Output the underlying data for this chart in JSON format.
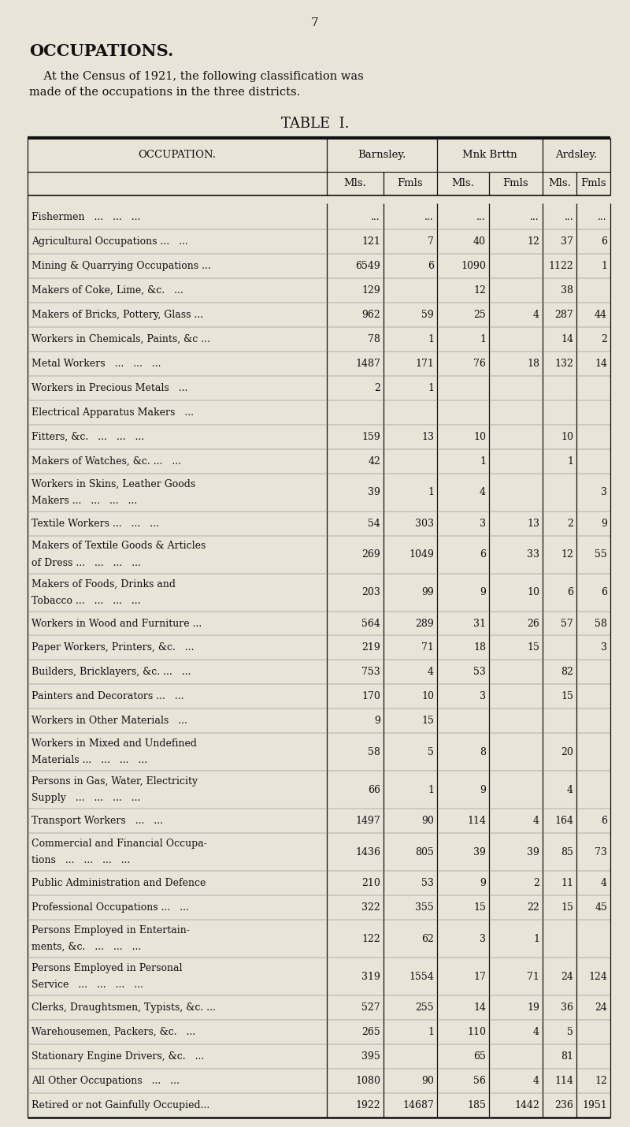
{
  "page_number": "7",
  "title": "OCCUPATIONS.",
  "subtitle1": "    At the Census of 1921, the following classification was",
  "subtitle2": "made of the occupations in the three districts.",
  "table_title": "TABLE  I.",
  "bg_color": "#e8e4d8",
  "text_color": "#111111",
  "rows": [
    [
      "Fishermen   ...   ...   ...",
      "...",
      "...",
      "...",
      "...",
      "...",
      "..."
    ],
    [
      "Agricultural Occupations ...   ...",
      "121",
      "7",
      "40",
      "12",
      "37",
      "6"
    ],
    [
      "Mining & Quarrying Occupations ...",
      "6549",
      "6",
      "1090",
      "",
      "1122",
      "1"
    ],
    [
      "Makers of Coke, Lime, &c.   ...",
      "129",
      "",
      "12",
      "",
      "38",
      ""
    ],
    [
      "Makers of Bricks, Pottery, Glass ...",
      "962",
      "59",
      "25",
      "4",
      "287",
      "44"
    ],
    [
      "Workers in Chemicals, Paints, &c ...",
      "78",
      "1",
      "1",
      "",
      "14",
      "2"
    ],
    [
      "Metal Workers   ...   ...   ...",
      "1487",
      "171",
      "76",
      "18",
      "132",
      "14"
    ],
    [
      "Workers in Precious Metals   ...",
      "2",
      "1",
      "",
      "",
      "",
      ""
    ],
    [
      "Electrical Apparatus Makers   ...",
      "",
      "",
      "",
      "",
      "",
      ""
    ],
    [
      "Fitters, &c.   ...   ...   ...",
      "159",
      "13",
      "10",
      "",
      "10",
      ""
    ],
    [
      "Makers of Watches, &c. ...   ...",
      "42",
      "",
      "1",
      "",
      "1",
      ""
    ],
    [
      "Workers in Skins, Leather Goods\nMakers ...   ...   ...   ...",
      "39",
      "1",
      "4",
      "",
      "",
      "3"
    ],
    [
      "Textile Workers ...   ...   ...",
      "54",
      "303",
      "3",
      "13",
      "2",
      "9"
    ],
    [
      "Makers of Textile Goods & Articles\nof Dress ...   ...   ...   ...",
      "269",
      "1049",
      "6",
      "33",
      "12",
      "55"
    ],
    [
      "Makers of Foods, Drinks and\nTobacco ...   ...   ...   ...",
      "203",
      "99",
      "9",
      "10",
      "6",
      "6"
    ],
    [
      "Workers in Wood and Furniture ...",
      "564",
      "289",
      "31",
      "26",
      "57",
      "58"
    ],
    [
      "Paper Workers, Printers, &c.   ...",
      "219",
      "71",
      "18",
      "15",
      "",
      "3"
    ],
    [
      "Builders, Bricklayers, &c. ...   ...",
      "753",
      "4",
      "53",
      "",
      "82",
      ""
    ],
    [
      "Painters and Decorators ...   ...",
      "170",
      "10",
      "3",
      "",
      "15",
      ""
    ],
    [
      "Workers in Other Materials   ...",
      "9",
      "15",
      "",
      "",
      "",
      ""
    ],
    [
      "Workers in Mixed and Undefined\nMaterials ...   ...   ...   ...",
      "58",
      "5",
      "8",
      "",
      "20",
      ""
    ],
    [
      "Persons in Gas, Water, Electricity\nSupply   ...   ...   ...   ...",
      "66",
      "1",
      "9",
      "",
      "4",
      ""
    ],
    [
      "Transport Workers   ...   ...",
      "1497",
      "90",
      "114",
      "4",
      "164",
      "6"
    ],
    [
      "Commercial and Financial Occupa-\ntions   ...   ...   ...   ...",
      "1436",
      "805",
      "39",
      "39",
      "85",
      "73"
    ],
    [
      "Public Administration and Defence",
      "210",
      "53",
      "9",
      "2",
      "11",
      "4"
    ],
    [
      "Professional Occupations ...   ...",
      "322",
      "355",
      "15",
      "22",
      "15",
      "45"
    ],
    [
      "Persons Employed in Entertain-\nments, &c.   ...   ...   ...",
      "122",
      "62",
      "3",
      "1",
      "",
      ""
    ],
    [
      "Persons Employed in Personal\nService   ...   ...   ...   ...",
      "319",
      "1554",
      "17",
      "71",
      "24",
      "124"
    ],
    [
      "Clerks, Draughtsmen, Typists, &c. ...",
      "527",
      "255",
      "14",
      "19",
      "36",
      "24"
    ],
    [
      "Warehousemen, Packers, &c.   ...",
      "265",
      "1",
      "110",
      "4",
      "5",
      ""
    ],
    [
      "Stationary Engine Drivers, &c.   ...",
      "395",
      "",
      "65",
      "",
      "81",
      ""
    ],
    [
      "All Other Occupations   ...   ...",
      "1080",
      "90",
      "56",
      "4",
      "114",
      "12"
    ],
    [
      "Retired or not Gainfully Occupied...",
      "1922",
      "14687",
      "185",
      "1442",
      "236",
      "1951"
    ]
  ],
  "two_line_rows": [
    11,
    13,
    14,
    20,
    21,
    23,
    26,
    27
  ]
}
